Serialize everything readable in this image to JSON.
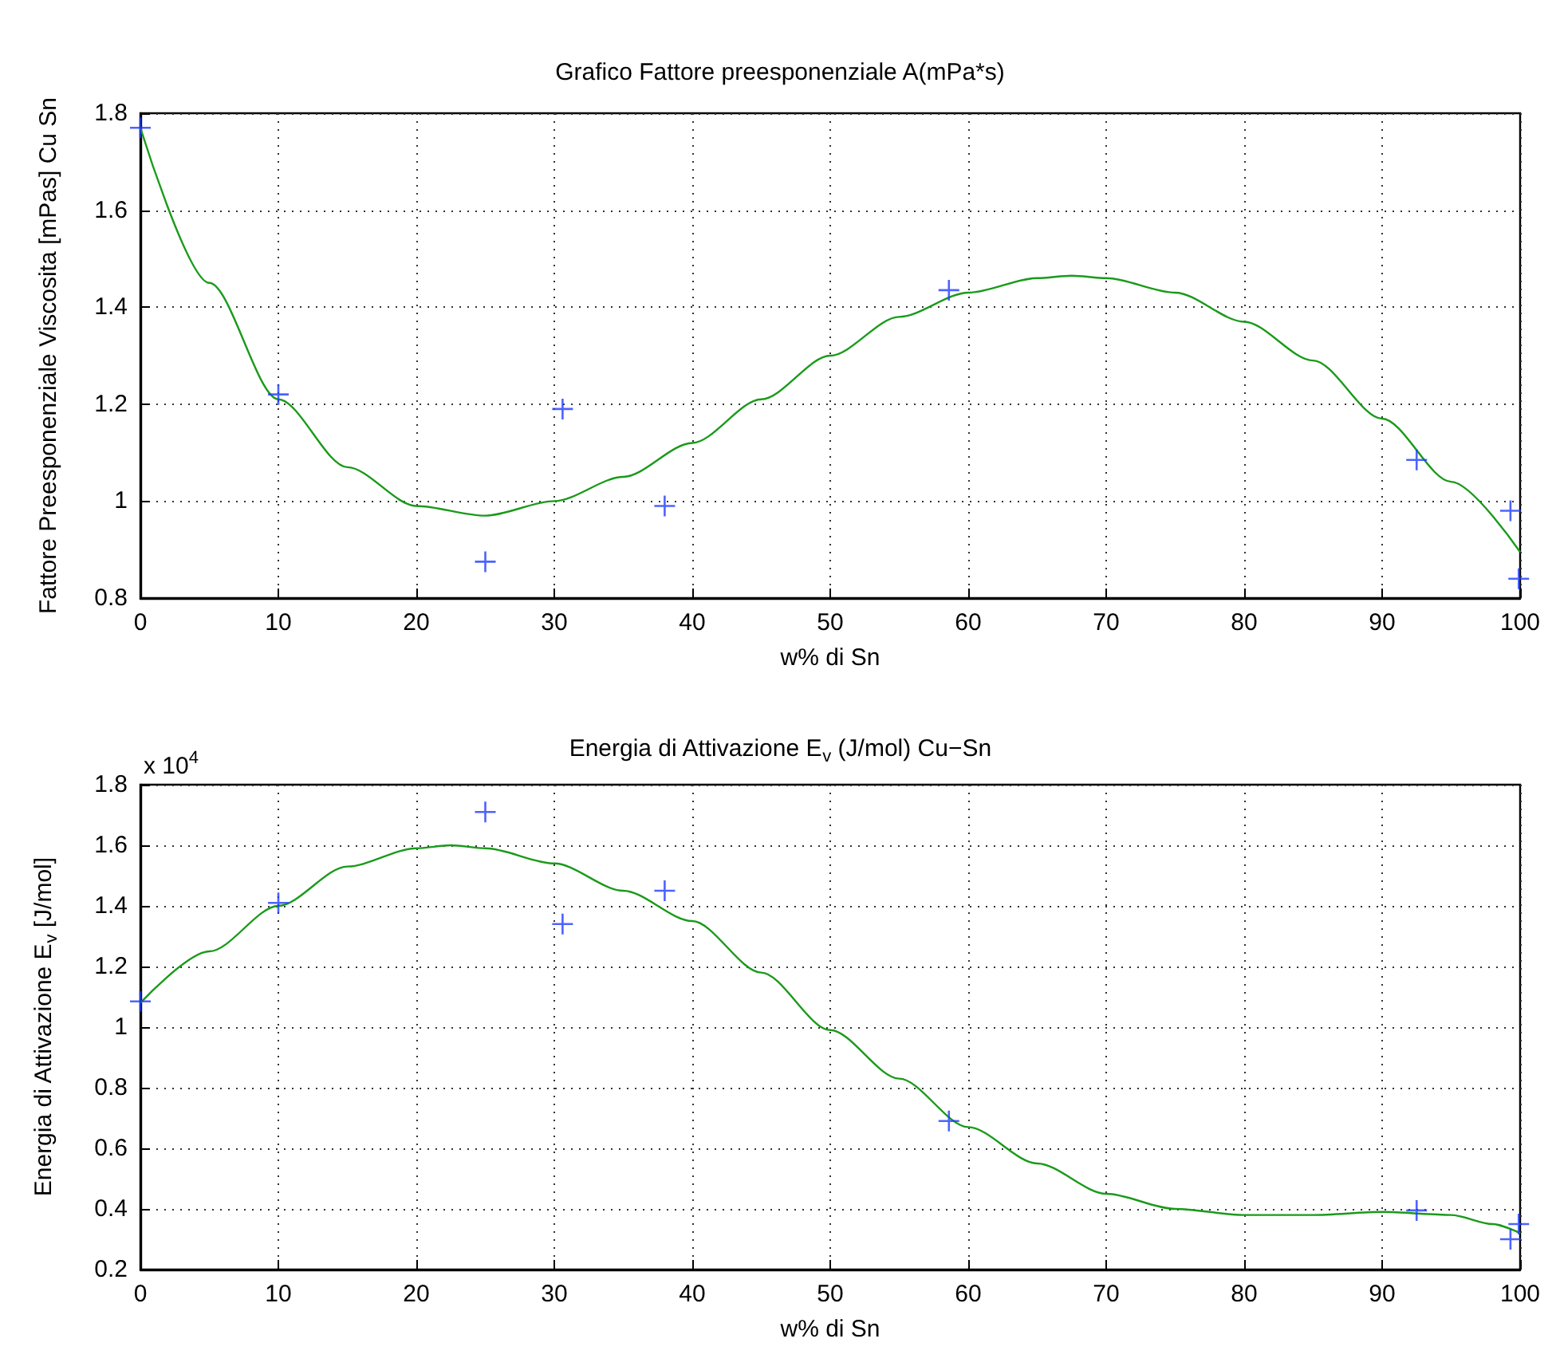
{
  "chart_data": [
    {
      "type": "line",
      "title": "Grafico Fattore preesponenziale A(mPa*s)",
      "xlabel": "w% di Sn",
      "ylabel": "Fattore Preesponenziale Viscosita [mPas] Cu Sn",
      "xlim": [
        0,
        100
      ],
      "ylim": [
        0.8,
        1.8
      ],
      "xticks": [
        0,
        10,
        20,
        30,
        40,
        50,
        60,
        70,
        80,
        90,
        100
      ],
      "yticks": [
        0.8,
        1,
        1.2,
        1.4,
        1.6,
        1.8
      ],
      "grid": true,
      "series": [
        {
          "type": "line",
          "color": "#1a9a1a",
          "marker": "none",
          "x": [
            0,
            5,
            10,
            15,
            20,
            25,
            30,
            35,
            40,
            45,
            50,
            55,
            60,
            65,
            67.5,
            70,
            75,
            80,
            85,
            90,
            95,
            100
          ],
          "values": [
            1.77,
            1.45,
            1.21,
            1.07,
            0.99,
            0.97,
            1.0,
            1.05,
            1.12,
            1.21,
            1.3,
            1.38,
            1.43,
            1.46,
            1.465,
            1.46,
            1.43,
            1.37,
            1.29,
            1.17,
            1.04,
            0.895
          ]
        },
        {
          "type": "scatter",
          "color": "#1f3cff",
          "marker": "cross",
          "x": [
            0,
            10,
            25,
            30.6,
            38,
            58.6,
            92.5,
            99.3,
            99.9
          ],
          "values": [
            1.77,
            1.22,
            0.875,
            1.19,
            0.99,
            1.435,
            1.085,
            0.98,
            0.84
          ]
        }
      ]
    },
    {
      "type": "line",
      "title": "Energia di Attivazione E$_{v}$ (J/mol) Cu−Sn",
      "xlabel": "w% di Sn",
      "ylabel": "Energia di Attivazione E$_{v}$ [J/mol]",
      "annotations": [
        "x 10$^{4}$"
      ],
      "xlim": [
        0,
        100
      ],
      "ylim": [
        0.2,
        1.8
      ],
      "xticks": [
        0,
        10,
        20,
        30,
        40,
        50,
        60,
        70,
        80,
        90,
        100
      ],
      "yticks": [
        0.2,
        0.4,
        0.6,
        0.8,
        1,
        1.2,
        1.4,
        1.6,
        1.8
      ],
      "grid": true,
      "series": [
        {
          "type": "line",
          "color": "#1a9a1a",
          "marker": "none",
          "x": [
            0,
            5,
            10,
            15,
            20,
            22.5,
            25,
            30,
            35,
            40,
            45,
            50,
            55,
            60,
            65,
            70,
            75,
            80,
            85,
            90,
            95,
            98,
            100
          ],
          "values": [
            1.08,
            1.25,
            1.4,
            1.53,
            1.59,
            1.6,
            1.59,
            1.54,
            1.45,
            1.35,
            1.18,
            0.99,
            0.83,
            0.67,
            0.55,
            0.45,
            0.4,
            0.38,
            0.38,
            0.39,
            0.38,
            0.35,
            0.32
          ]
        },
        {
          "type": "scatter",
          "color": "#1f3cff",
          "marker": "cross",
          "x": [
            0,
            10,
            25,
            30.6,
            38,
            58.6,
            92.5,
            99.3,
            99.9
          ],
          "values": [
            1.085,
            1.41,
            1.71,
            1.34,
            1.45,
            0.69,
            0.395,
            0.3,
            0.35
          ]
        }
      ]
    }
  ]
}
